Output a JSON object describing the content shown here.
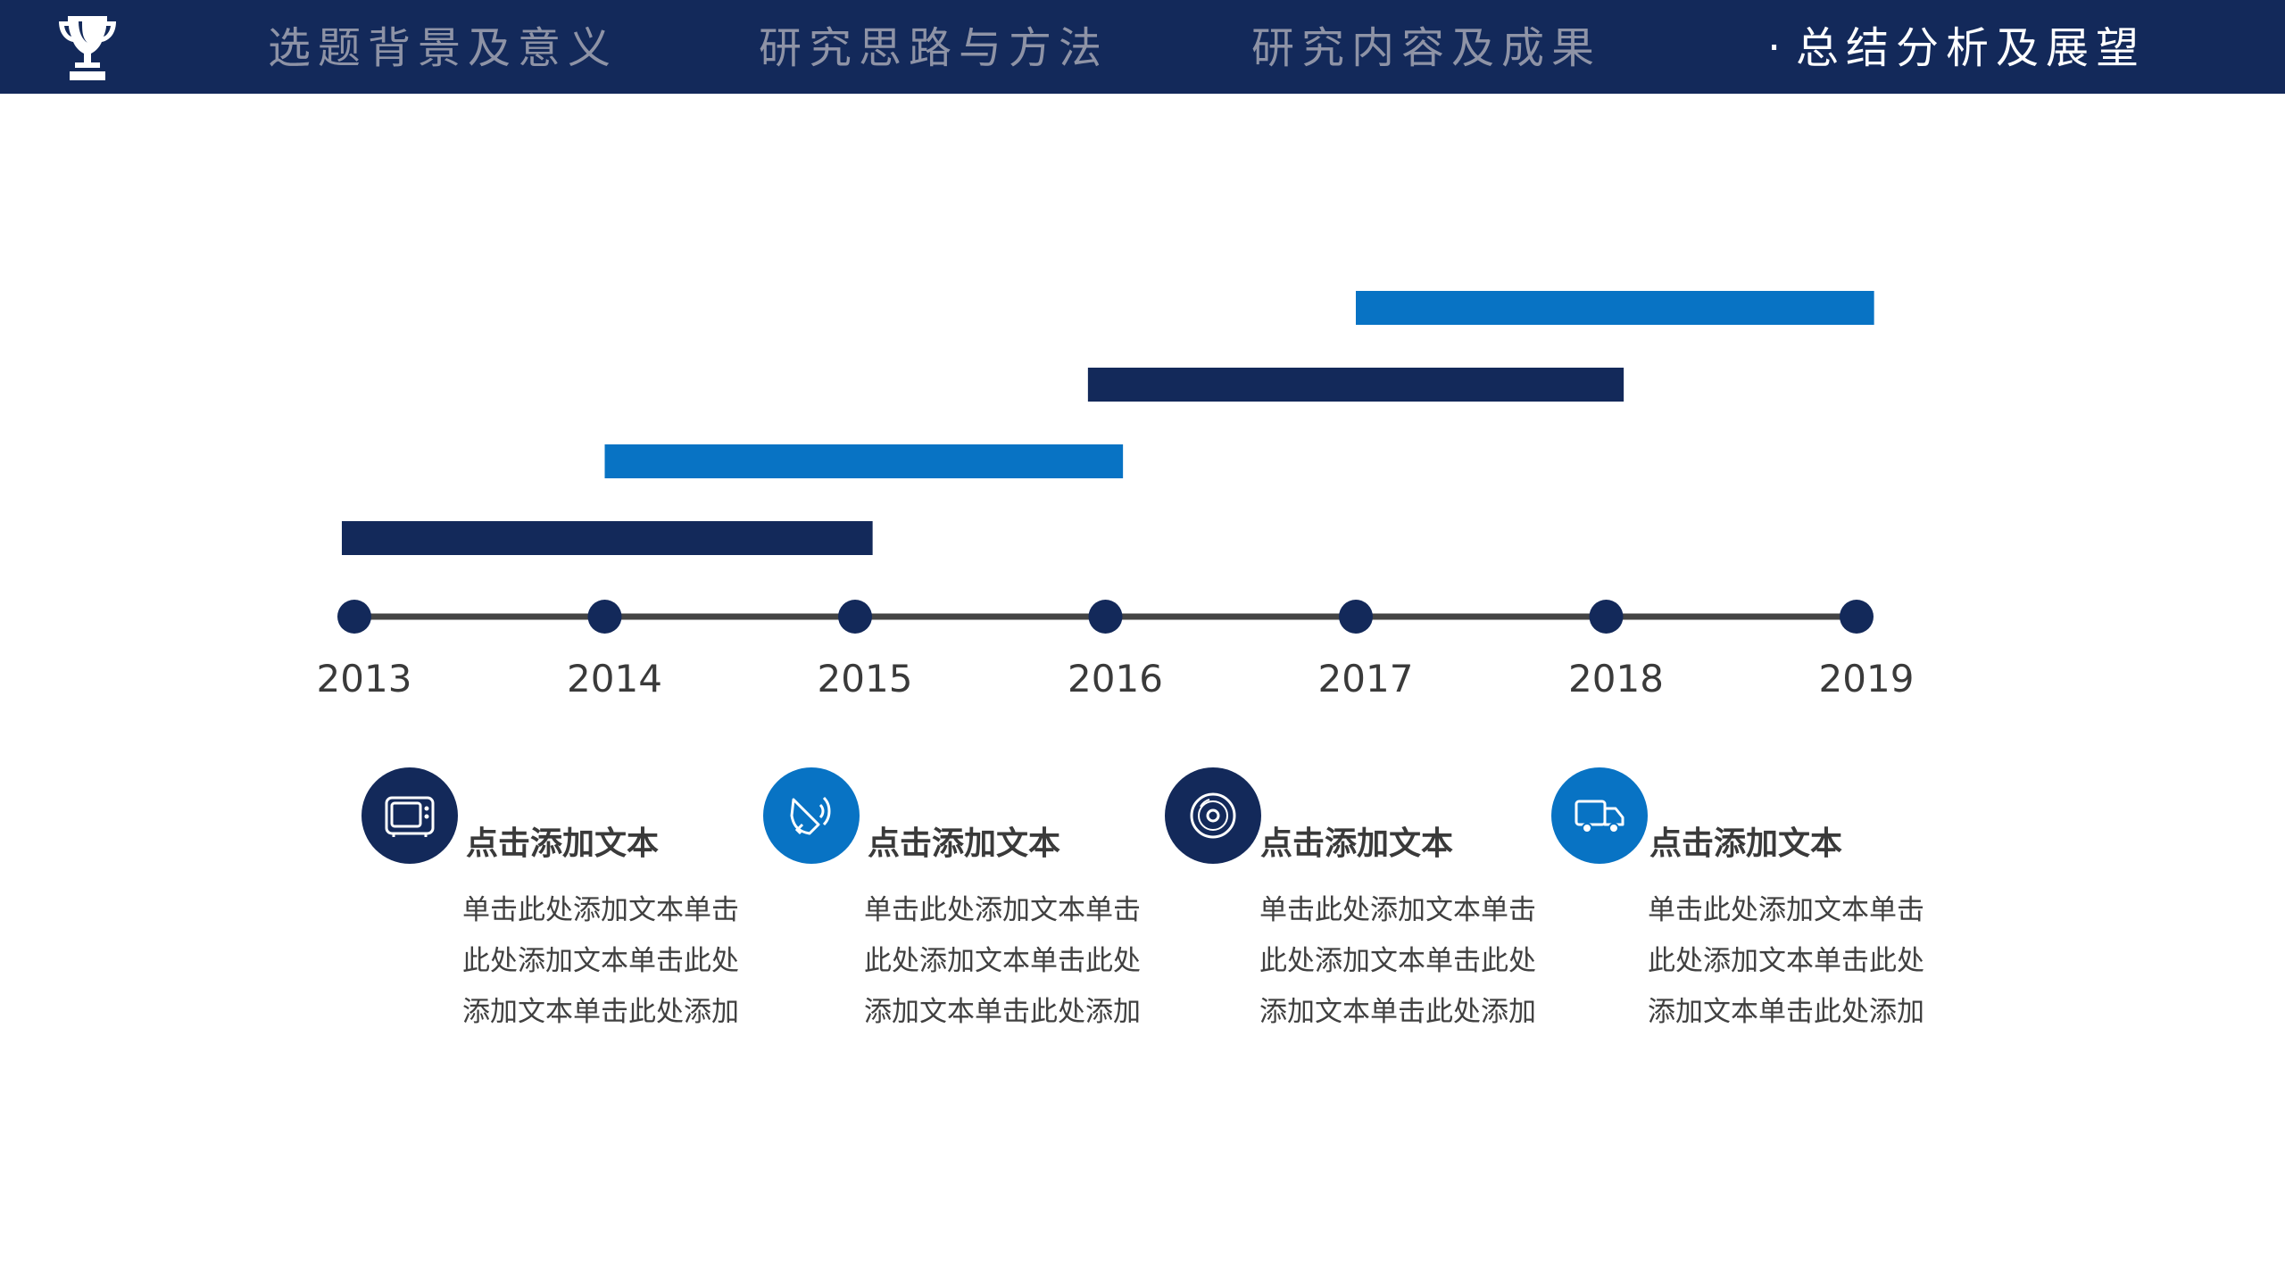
{
  "nav": {
    "items": [
      {
        "label": "选题背景及意义",
        "active": false
      },
      {
        "label": "研究思路与方法",
        "active": false
      },
      {
        "label": "研究内容及成果",
        "active": false
      },
      {
        "label": "总结分析及展望",
        "active": true
      }
    ],
    "active_marker": "·",
    "logo_icon": "trophy-icon"
  },
  "colors": {
    "navy": "#13295a",
    "blue": "#0873c4",
    "axis": "#444444",
    "nav_inactive": "#8e93a6",
    "nav_active": "#ffffff"
  },
  "chart_data": {
    "type": "bar",
    "orientation": "horizontal-gantt",
    "x_ticks": [
      "2013",
      "2014",
      "2015",
      "2016",
      "2017",
      "2018",
      "2019"
    ],
    "xlim": [
      2013,
      2019
    ],
    "series": [
      {
        "start": 2012.95,
        "end": 2015.07,
        "color": "#13295a"
      },
      {
        "start": 2014.0,
        "end": 2016.07,
        "color": "#0873c4"
      },
      {
        "start": 2015.93,
        "end": 2018.07,
        "color": "#13295a"
      },
      {
        "start": 2017.0,
        "end": 2019.07,
        "color": "#0873c4"
      }
    ],
    "grid": false,
    "title": "",
    "xlabel": "",
    "ylabel": ""
  },
  "items": [
    {
      "icon": "tv-icon",
      "title": "点击添加文本",
      "body": "单击此处添加文本单击此处添加文本单击此处添加文本单击此处添加",
      "color": "#13295a"
    },
    {
      "icon": "megaphone-icon",
      "title": "点击添加文本",
      "body": "单击此处添加文本单击此处添加文本单击此处添加文本单击此处添加",
      "color": "#0873c4"
    },
    {
      "icon": "vinyl-disc-icon",
      "title": "点击添加文本",
      "body": "单击此处添加文本单击此处添加文本单击此处添加文本单击此处添加",
      "color": "#13295a"
    },
    {
      "icon": "truck-icon",
      "title": "点击添加文本",
      "body": "单击此处添加文本单击此处添加文本单击此处添加文本单击此处添加",
      "color": "#0873c4"
    }
  ]
}
